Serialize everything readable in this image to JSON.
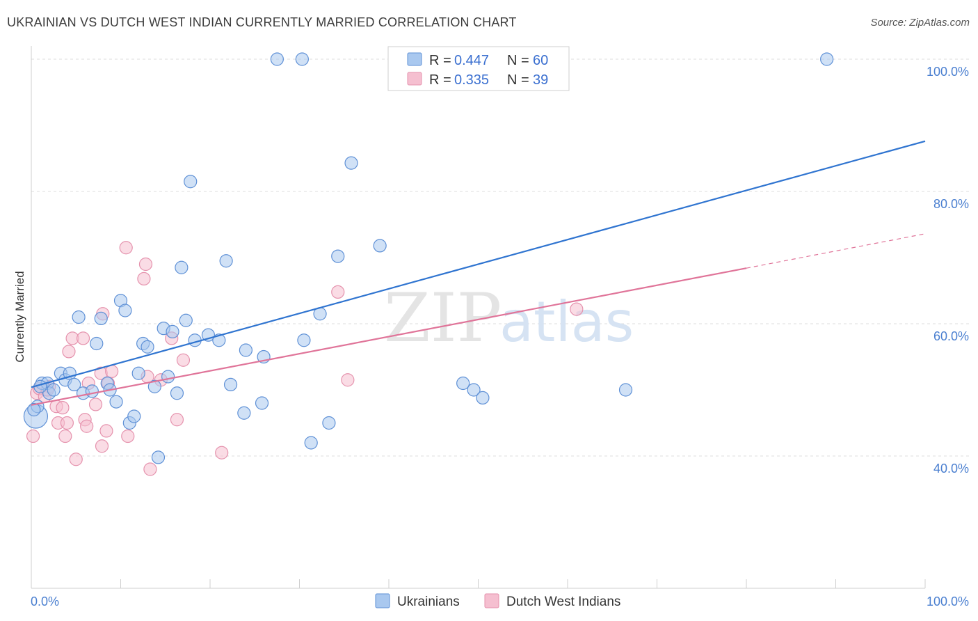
{
  "title": "UKRAINIAN VS DUTCH WEST INDIAN CURRENTLY MARRIED CORRELATION CHART",
  "source": "Source: ZipAtlas.com",
  "watermark": {
    "zip": "ZIP",
    "atlas": "atlas"
  },
  "colors": {
    "blue_fill": "#a9c8ef",
    "blue_stroke": "#5e90d6",
    "blue_line": "#2f74d0",
    "pink_fill": "#f5bfd0",
    "pink_stroke": "#e592ad",
    "pink_line": "#e07499",
    "grid": "#dcdcdc",
    "tick_text": "#4a7fd0"
  },
  "legend": {
    "rows": [
      {
        "r_label": "R = ",
        "r_value": "0.447",
        "n_label": "N = ",
        "n_value": "60"
      },
      {
        "r_label": "R = ",
        "r_value": "0.335",
        "n_label": "N = ",
        "n_value": "39"
      }
    ]
  },
  "bottom_legend": [
    "Ukrainians",
    "Dutch West Indians"
  ],
  "chart_data": {
    "type": "scatter",
    "title": "UKRAINIAN VS DUTCH WEST INDIAN CURRENTLY MARRIED CORRELATION CHART",
    "xlabel": "",
    "ylabel": "Currently Married",
    "xlim": [
      0,
      100
    ],
    "ylim": [
      20,
      102
    ],
    "x_tick_labels": [
      "0.0%",
      "100.0%"
    ],
    "y_ticks": [
      40,
      60,
      80,
      100
    ],
    "y_tick_labels": [
      "40.0%",
      "60.0%",
      "80.0%",
      "100.0%"
    ],
    "grid": true,
    "legend_position": "top-center",
    "series": [
      {
        "name": "Ukrainians",
        "r": 0.447,
        "n": 60,
        "trend": {
          "x0": 0,
          "y0": 50.4,
          "x1": 100,
          "y1": 87.6
        },
        "points": [
          [
            0.5,
            46.0
          ],
          [
            0.7,
            47.5
          ],
          [
            1.2,
            51.0
          ],
          [
            1.8,
            51.0
          ],
          [
            2.0,
            49.5
          ],
          [
            2.5,
            50.0
          ],
          [
            3.3,
            52.5
          ],
          [
            3.8,
            51.5
          ],
          [
            4.3,
            52.5
          ],
          [
            4.8,
            50.8
          ],
          [
            5.3,
            61.0
          ],
          [
            5.8,
            49.5
          ],
          [
            6.8,
            49.8
          ],
          [
            7.3,
            57.0
          ],
          [
            7.8,
            60.8
          ],
          [
            8.5,
            51.0
          ],
          [
            8.8,
            50.0
          ],
          [
            9.5,
            48.2
          ],
          [
            10.0,
            63.5
          ],
          [
            10.5,
            62.0
          ],
          [
            11.0,
            45.0
          ],
          [
            11.5,
            46.0
          ],
          [
            12.0,
            52.5
          ],
          [
            12.5,
            57.0
          ],
          [
            13.0,
            56.5
          ],
          [
            13.8,
            50.5
          ],
          [
            14.2,
            39.8
          ],
          [
            14.8,
            59.3
          ],
          [
            15.3,
            52.0
          ],
          [
            15.8,
            58.8
          ],
          [
            16.3,
            49.5
          ],
          [
            16.8,
            68.5
          ],
          [
            17.3,
            60.5
          ],
          [
            17.8,
            81.5
          ],
          [
            18.3,
            57.5
          ],
          [
            19.8,
            58.3
          ],
          [
            21.0,
            57.5
          ],
          [
            21.8,
            69.5
          ],
          [
            22.3,
            50.8
          ],
          [
            23.8,
            46.5
          ],
          [
            24.0,
            56.0
          ],
          [
            25.8,
            48.0
          ],
          [
            26.0,
            55.0
          ],
          [
            27.5,
            100.0
          ],
          [
            30.3,
            100.0
          ],
          [
            30.5,
            57.5
          ],
          [
            31.3,
            42.0
          ],
          [
            32.3,
            61.5
          ],
          [
            33.3,
            45.0
          ],
          [
            34.3,
            70.2
          ],
          [
            35.8,
            84.3
          ],
          [
            39.0,
            71.8
          ],
          [
            45.0,
            100.0
          ],
          [
            48.3,
            51.0
          ],
          [
            49.5,
            50.0
          ],
          [
            50.5,
            48.8
          ],
          [
            66.5,
            50.0
          ],
          [
            89.0,
            100.0
          ],
          [
            0.3,
            47.0
          ],
          [
            1.0,
            50.5
          ]
        ]
      },
      {
        "name": "Dutch West Indians",
        "r": 0.335,
        "n": 39,
        "trend": {
          "x0": 0,
          "y0": 47.7,
          "x1": 80,
          "y1": 68.4
        },
        "trend_dashed": {
          "x0": 80,
          "y0": 68.4,
          "x1": 100,
          "y1": 73.6
        },
        "points": [
          [
            0.2,
            43.0
          ],
          [
            0.6,
            49.5
          ],
          [
            0.9,
            50.2
          ],
          [
            1.5,
            49.0
          ],
          [
            2.0,
            50.5
          ],
          [
            2.8,
            47.5
          ],
          [
            3.0,
            45.0
          ],
          [
            3.5,
            47.3
          ],
          [
            3.8,
            43.0
          ],
          [
            4.0,
            45.0
          ],
          [
            4.2,
            55.8
          ],
          [
            4.6,
            57.8
          ],
          [
            5.0,
            39.5
          ],
          [
            5.8,
            57.8
          ],
          [
            6.0,
            45.5
          ],
          [
            6.2,
            44.5
          ],
          [
            6.4,
            51.0
          ],
          [
            7.2,
            47.8
          ],
          [
            7.8,
            52.5
          ],
          [
            7.9,
            41.5
          ],
          [
            8.0,
            61.5
          ],
          [
            8.4,
            43.8
          ],
          [
            8.6,
            51.0
          ],
          [
            9.0,
            52.8
          ],
          [
            10.6,
            71.5
          ],
          [
            10.8,
            43.0
          ],
          [
            12.6,
            66.8
          ],
          [
            12.8,
            69.0
          ],
          [
            13.0,
            52.0
          ],
          [
            13.3,
            38.0
          ],
          [
            14.5,
            51.5
          ],
          [
            15.7,
            57.8
          ],
          [
            16.3,
            45.5
          ],
          [
            17.0,
            54.5
          ],
          [
            21.3,
            40.5
          ],
          [
            34.3,
            64.8
          ],
          [
            35.4,
            51.5
          ],
          [
            61.0,
            62.2
          ],
          [
            1.8,
            50.0
          ]
        ]
      }
    ]
  }
}
